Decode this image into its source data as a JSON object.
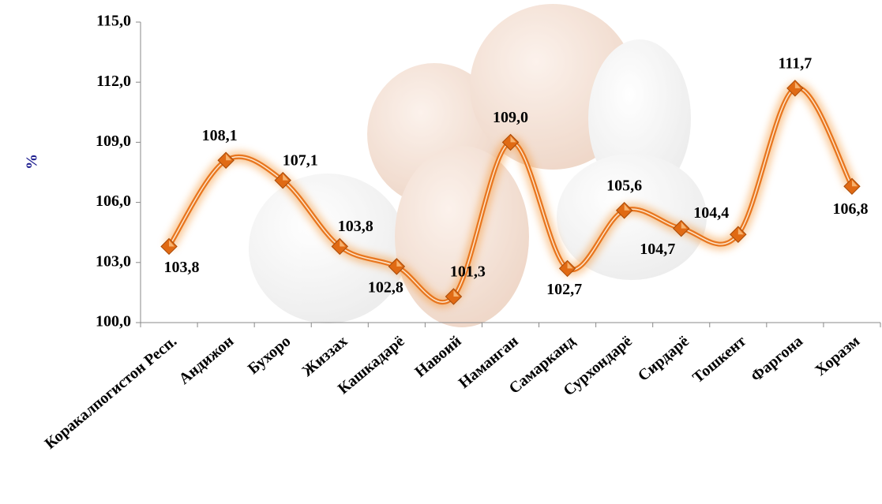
{
  "chart_data": {
    "type": "line",
    "y_label": "%",
    "categories": [
      "Коракалпогистон Респ.",
      "Андижон",
      "Бухоро",
      "Жиззах",
      "Кашкадарё",
      "Навоий",
      "Наманган",
      "Самарканд",
      "Сурхондарё",
      "Сирдарё",
      "Тошкент",
      "Фаргона",
      "Хоразм"
    ],
    "values": [
      103.8,
      108.1,
      107.1,
      103.8,
      102.8,
      101.3,
      109.0,
      102.7,
      105.6,
      104.7,
      104.4,
      111.7,
      106.8
    ],
    "value_labels": [
      "103,8",
      "108,1",
      "107,1",
      "103,8",
      "102,8",
      "101,3",
      "109,0",
      "102,7",
      "105,6",
      "104,7",
      "104,4",
      "111,7",
      "106,8"
    ],
    "color": "#e8761f",
    "ylim": [
      100,
      115
    ],
    "yticks": [
      {
        "value": 100,
        "label": "100,0"
      },
      {
        "value": 103,
        "label": "103,0"
      },
      {
        "value": 106,
        "label": "106,0"
      },
      {
        "value": 109,
        "label": "109,0"
      },
      {
        "value": 112,
        "label": "112,0"
      },
      {
        "value": 115,
        "label": "115,0"
      }
    ]
  }
}
